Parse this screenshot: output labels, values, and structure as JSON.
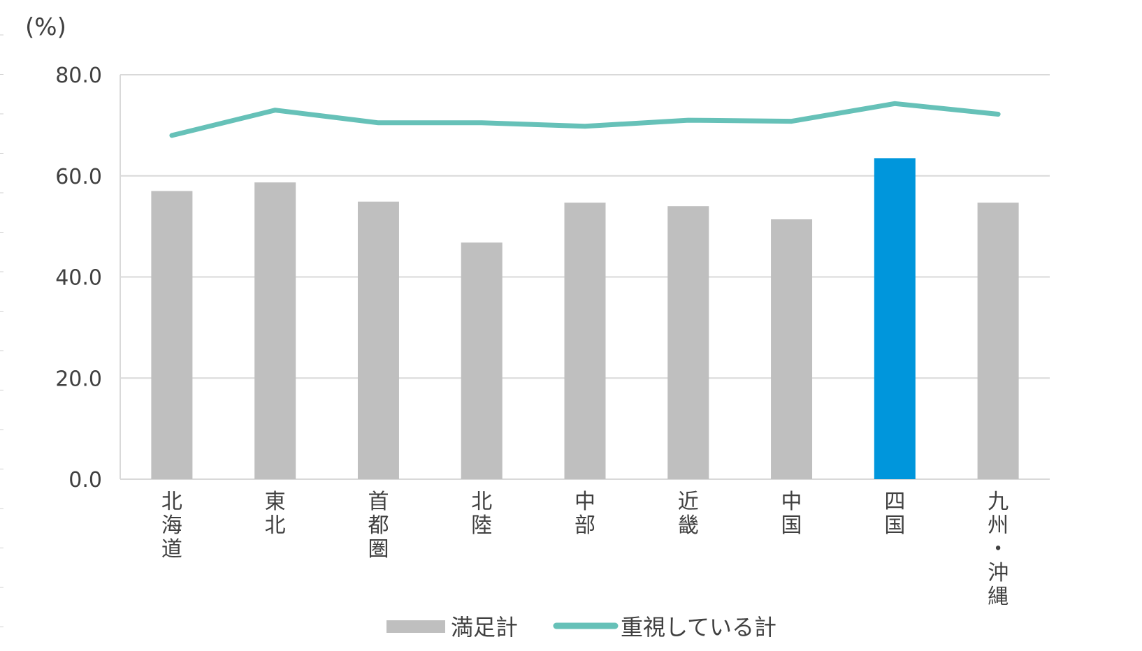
{
  "chart_data": {
    "type": "bar",
    "unit_label": "(%)",
    "categories": [
      "北海道",
      "東北",
      "首都圏",
      "北陸",
      "中部",
      "近畿",
      "中国",
      "四国",
      "九州・沖縄"
    ],
    "y_ticks": [
      "0.0",
      "20.0",
      "40.0",
      "60.0",
      "80.0"
    ],
    "ylim": [
      0,
      80
    ],
    "grid": true,
    "legend_position": "bottom",
    "series": [
      {
        "name": "満足計",
        "type": "bar",
        "values": [
          57.0,
          58.7,
          54.9,
          46.8,
          54.7,
          54.0,
          51.4,
          63.5,
          54.7
        ],
        "color": "#bfbfbf",
        "highlight_index": 7,
        "highlight_color": "#0096dc"
      },
      {
        "name": "重視している計",
        "type": "line",
        "values": [
          68.0,
          73.0,
          70.5,
          70.5,
          69.8,
          71.0,
          70.8,
          74.3,
          72.2
        ],
        "color": "#66c1b8"
      }
    ]
  }
}
